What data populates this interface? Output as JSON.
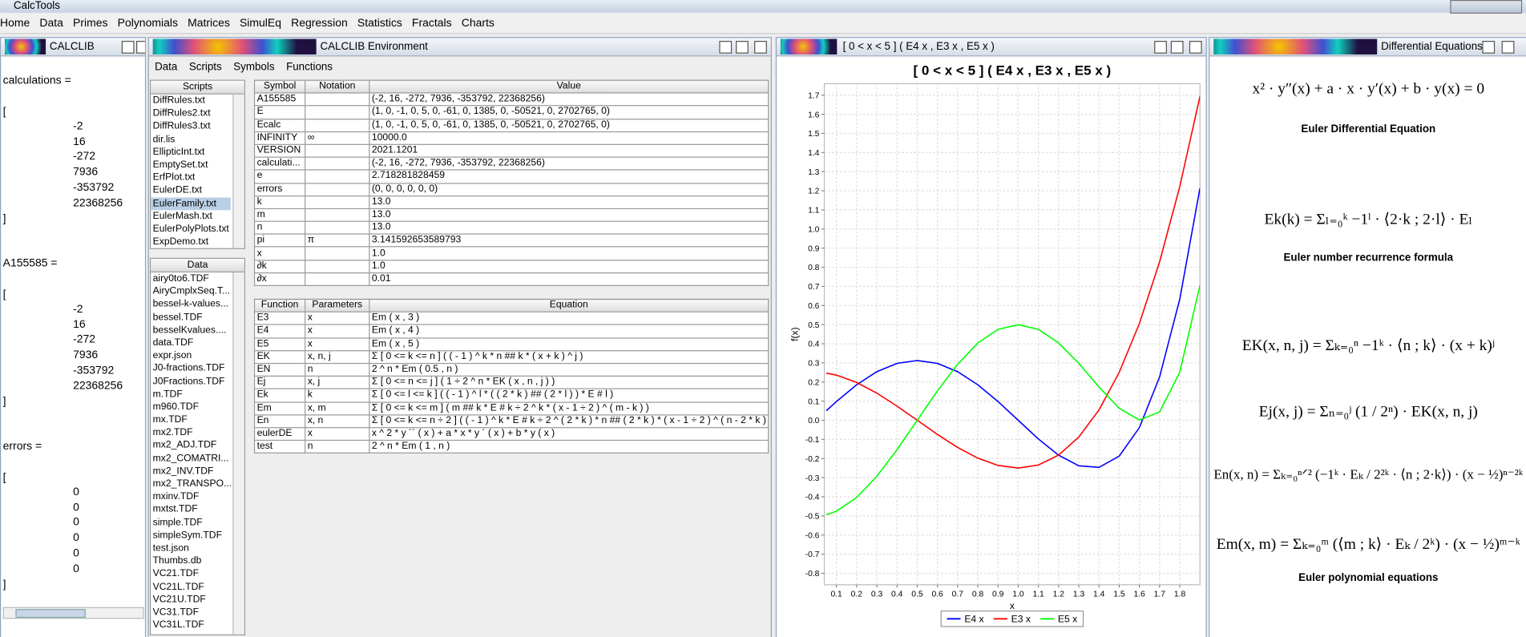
{
  "window": {
    "title": "CalcTools"
  },
  "menu": [
    "Home",
    "Data",
    "Primes",
    "Polynomials",
    "Matrices",
    "SimulEq",
    "Regression",
    "Statistics",
    "Fractals",
    "Charts"
  ],
  "calclib": {
    "title": "CALCLIB",
    "blocks": [
      {
        "name": "calculations =",
        "open": "[",
        "values": [
          -2,
          16,
          -272,
          7936,
          -353792,
          22368256
        ],
        "close": "]"
      },
      {
        "name": "A155585 =",
        "open": "[",
        "values": [
          -2,
          16,
          -272,
          7936,
          -353792,
          22368256
        ],
        "close": "]"
      },
      {
        "name": "errors =",
        "open": "[",
        "values": [
          0,
          0,
          0,
          0,
          0,
          0
        ],
        "close": "]"
      }
    ]
  },
  "environment": {
    "title": "CALCLIB Environment",
    "menu": [
      "Data",
      "Scripts",
      "Symbols",
      "Functions"
    ],
    "scripts": {
      "header": "Scripts",
      "selected": 8,
      "items": [
        "DiffRules.txt",
        "DiffRules2.txt",
        "DiffRules3.txt",
        "dir.lis",
        "EllipticInt.txt",
        "EmptySet.txt",
        "ErfPlot.txt",
        "EulerDE.txt",
        "EulerFamily.txt",
        "EulerMash.txt",
        "EulerPolyPlots.txt",
        "ExpDemo.txt"
      ]
    },
    "data": {
      "header": "Data",
      "items": [
        "airy0to6.TDF",
        "AiryCmplxSeq.T...",
        "bessel-k-values...",
        "bessel.TDF",
        "besselKvalues....",
        "data.TDF",
        "expr.json",
        "J0-fractions.TDF",
        "J0Fractions.TDF",
        "m.TDF",
        "m960.TDF",
        "mx.TDF",
        "mx2.TDF",
        "mx2_ADJ.TDF",
        "mx2_COMATRI...",
        "mx2_INV.TDF",
        "mx2_TRANSPO...",
        "mxinv.TDF",
        "mxtst.TDF",
        "simple.TDF",
        "simpleSym.TDF",
        "test.json",
        "Thumbs.db",
        "VC21.TDF",
        "VC21L.TDF",
        "VC21U.TDF",
        "VC31.TDF",
        "VC31L.TDF"
      ]
    },
    "symbols": {
      "columns": [
        "Symbol",
        "Notation",
        "Value"
      ],
      "rows": [
        [
          "A155585",
          null,
          "(-2, 16, -272, 7936, -353792, 22368256)"
        ],
        [
          "E",
          null,
          "(1, 0, -1, 0, 5, 0, -61, 0, 1385, 0, -50521, 0, 2702765, 0)"
        ],
        [
          "Ecalc",
          null,
          "(1, 0, -1, 0, 5, 0, -61, 0, 1385, 0, -50521, 0, 2702765, 0)"
        ],
        [
          "INFINITY",
          "∞",
          "10000.0"
        ],
        [
          "VERSION",
          null,
          "2021.1201"
        ],
        [
          "calculati...",
          null,
          "(-2, 16, -272, 7936, -353792, 22368256)"
        ],
        [
          "e",
          null,
          "2.718281828459"
        ],
        [
          "errors",
          null,
          "(0, 0, 0, 0, 0, 0)"
        ],
        [
          "k",
          null,
          "13.0"
        ],
        [
          "m",
          null,
          "13.0"
        ],
        [
          "n",
          null,
          "13.0"
        ],
        [
          "pi",
          "π",
          "3.141592653589793"
        ],
        [
          "x",
          null,
          "1.0"
        ],
        [
          "∂k",
          null,
          "1.0"
        ],
        [
          "∂x",
          null,
          "0.01"
        ]
      ]
    },
    "functions": {
      "columns": [
        "Function",
        "Parameters",
        "Equation"
      ],
      "rows": [
        [
          "E3",
          "x",
          "Em ( x , 3 )"
        ],
        [
          "E4",
          "x",
          "Em ( x , 4 )"
        ],
        [
          "E5",
          "x",
          "Em ( x , 5 )"
        ],
        [
          "EK",
          "x, n, j",
          "Σ [ 0 <= k <= n ] ( ( - 1 ) ^ k * n ## k * ( x + k ) ^ j )"
        ],
        [
          "EN",
          "n",
          "2 ^ n * Em ( 0.5 , n )"
        ],
        [
          "Ej",
          "x, j",
          "Σ [ 0 <= n <= j ] ( 1 ÷ 2 ^ n * EK ( x , n , j ) )"
        ],
        [
          "Ek",
          "k",
          "Σ [ 0 <= l <= k ] ( ( - 1 ) ^ l * ( ( 2 * k ) ## ( 2 * l ) ) * E # l )"
        ],
        [
          "Em",
          "x, m",
          "Σ [ 0 <= k <= m ] ( m ## k * E # k ÷ 2 ^ k * ( x - 1 ÷ 2 ) ^ ( m - k ) )"
        ],
        [
          "En",
          "x, n",
          "Σ [ 0 <= k <= n ÷ 2 ] ( ( - 1 ) ^ k * E # k ÷ 2 ^ ( 2 * k ) * n ## ( 2 * k ) * ( x - 1 ÷ 2 ) ^ ( n - 2 * k ) )"
        ],
        [
          "eulerDE",
          "x",
          "x ^ 2 * y ´´ ( x ) + a * x * y ´ ( x ) + b * y ( x )"
        ],
        [
          "test",
          "n",
          "2 ^ n * Em ( 1 , n )"
        ]
      ]
    }
  },
  "plot": {
    "window_title": "[ 0 < x < 5 ] ( E4 x , E3 x , E5 x )",
    "type": "line",
    "title": "[ 0 < x < 5 ]  ( E4 x , E3 x , E5 x )",
    "x_label": "x",
    "y_label": "f(x)",
    "x": [
      0.05,
      0.1,
      0.2,
      0.3,
      0.4,
      0.5,
      0.6,
      0.7,
      0.8,
      0.9,
      1.0,
      1.1,
      1.2,
      1.3,
      1.4,
      1.5,
      1.6,
      1.7,
      1.8,
      1.9
    ],
    "series": [
      {
        "name": "E4 x",
        "color": "#0000ff",
        "values": [
          0.0498,
          0.0981,
          0.1856,
          0.2541,
          0.2976,
          0.3125,
          0.2976,
          0.2541,
          0.1856,
          0.0981,
          0,
          -0.0979,
          -0.1824,
          -0.2379,
          -0.2464,
          -0.1875,
          -0.0384,
          0.2261,
          0.6336,
          1.2141
        ]
      },
      {
        "name": "E3 x",
        "color": "#ff0000",
        "values": [
          0.2464,
          0.236,
          0.198,
          0.142,
          0.074,
          0,
          -0.074,
          -0.142,
          -0.198,
          -0.236,
          -0.25,
          -0.234,
          -0.182,
          -0.088,
          0.054,
          0.25,
          0.506,
          0.828,
          1.222,
          1.694
        ]
      },
      {
        "name": "E5 x",
        "color": "#00ff00",
        "values": [
          -0.4938,
          -0.4752,
          -0.4037,
          -0.2928,
          -0.1538,
          0,
          0.1538,
          0.2928,
          0.4037,
          0.4752,
          0.5,
          0.4753,
          0.4043,
          0.2977,
          0.1742,
          0.0625,
          0.0018,
          0.0433,
          0.2517,
          0.7057
        ]
      }
    ],
    "xlim": [
      0.04,
      1.9
    ],
    "ylim": [
      -0.86,
      1.76
    ],
    "xticks": [
      0.1,
      0.2,
      0.3,
      0.4,
      0.5,
      0.6,
      0.7,
      0.8,
      0.9,
      {
        "value": 1,
        "label": "1.0"
      },
      1.1,
      1.2,
      1.3,
      1.4,
      1.5,
      1.6,
      1.7,
      1.8
    ],
    "yticks": [
      -0.8,
      -0.7,
      -0.6,
      -0.5,
      -0.4,
      -0.3,
      -0.2,
      -0.1,
      {
        "value": 0,
        "label": "0.0"
      },
      0.1,
      0.2,
      0.3,
      0.4,
      0.5,
      0.6,
      0.7,
      0.8,
      0.9,
      {
        "value": 1,
        "label": "1.0"
      },
      1.1,
      1.2,
      1.3,
      1.4,
      1.5,
      1.6,
      1.7
    ],
    "grid": true,
    "legend": "bottom"
  },
  "equations_panel": {
    "title": "Differential Equations",
    "items": [
      {
        "formula": "x² · y″(x) + a · x · y′(x) + b · y(x) = 0",
        "caption": "Euler Differential Equation"
      },
      {
        "formula": "Ek(k) = Σₗ₌₀ᵏ −1ˡ · ⟨2·k ; 2·l⟩ · Eₗ",
        "caption": "Euler number recurrence formula"
      },
      {
        "formula": "EK(x, n, j) = Σₖ₌₀ⁿ −1ᵏ · ⟨n ; k⟩ · (x + k)ʲ"
      },
      {
        "formula": "Ej(x, j) = Σₙ₌₀ʲ (1 / 2ⁿ) · EK(x, n, j)"
      },
      {
        "formula": "En(x, n) = Σₖ₌₀ⁿᐟ² (−1ᵏ · Eₖ / 2²ᵏ · ⟨n ; 2·k⟩) · (x − ½)ⁿ⁻²ᵏ"
      },
      {
        "formula": "Em(x, m) = Σₖ₌₀ᵐ (⟨m ; k⟩ · Eₖ / 2ᵏ) · (x − ½)ᵐ⁻ᵏ",
        "caption": "Euler polynomial equations"
      }
    ]
  }
}
